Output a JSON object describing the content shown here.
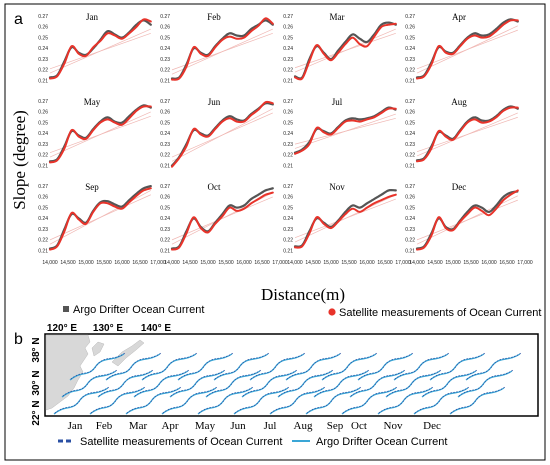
{
  "panels": {
    "a_label": "a",
    "b_label": "b"
  },
  "chart_data": [
    {
      "type": "line",
      "panel": "a",
      "subplot_titles": [
        "Jan",
        "Feb",
        "Mar",
        "Apr",
        "May",
        "Jun",
        "Jul",
        "Aug",
        "Sep",
        "Oct",
        "Nov",
        "Dec"
      ],
      "xlabel": "Distance(m)",
      "ylabel": "Slope (degree)",
      "xlim": [
        14000,
        17000
      ],
      "ylim": [
        0.205,
        0.272
      ],
      "x_ticks": [
        14000,
        14500,
        15000,
        15500,
        16000,
        16500,
        17000
      ],
      "x_tick_labels": [
        "14,000",
        "14,500",
        "15,000",
        "15,500",
        "16,000",
        "16,500",
        "17,000"
      ],
      "y_ticks": [
        0.21,
        0.22,
        0.23,
        0.24,
        0.25,
        0.26,
        0.27
      ],
      "y_tick_labels": [
        "0.21",
        "0.22",
        "0.23",
        "0.24",
        "0.25",
        "0.26",
        "0.27"
      ],
      "x": [
        14000,
        14200,
        14400,
        14600,
        14800,
        15000,
        15200,
        15400,
        15600,
        15800,
        16000,
        16200,
        16400,
        16600,
        16800
      ],
      "series": [
        {
          "name": "Argo Drifter Ocean Current",
          "color": "#555555",
          "values": [
            [
              0.213,
              0.215,
              0.228,
              0.241,
              0.236,
              0.234,
              0.24,
              0.248,
              0.256,
              0.253,
              0.25,
              0.255,
              0.262,
              0.266,
              0.262
            ],
            [
              0.212,
              0.213,
              0.225,
              0.24,
              0.236,
              0.234,
              0.242,
              0.249,
              0.254,
              0.252,
              0.252,
              0.258,
              0.262,
              0.266,
              0.262
            ],
            [
              0.214,
              0.213,
              0.23,
              0.242,
              0.236,
              0.23,
              0.238,
              0.246,
              0.253,
              0.249,
              0.246,
              0.253,
              0.262,
              0.264,
              0.262
            ],
            [
              0.213,
              0.215,
              0.227,
              0.241,
              0.237,
              0.236,
              0.243,
              0.25,
              0.254,
              0.252,
              0.253,
              0.258,
              0.264,
              0.267,
              0.265
            ],
            [
              0.214,
              0.216,
              0.228,
              0.242,
              0.238,
              0.236,
              0.244,
              0.251,
              0.255,
              0.251,
              0.25,
              0.256,
              0.262,
              0.266,
              0.264
            ],
            [
              0.21,
              0.218,
              0.23,
              0.243,
              0.24,
              0.238,
              0.245,
              0.252,
              0.256,
              0.253,
              0.252,
              0.258,
              0.263,
              0.268,
              0.267
            ],
            [
              0.222,
              0.225,
              0.232,
              0.244,
              0.242,
              0.24,
              0.246,
              0.252,
              0.254,
              0.253,
              0.254,
              0.256,
              0.26,
              0.264,
              0.262
            ],
            [
              0.215,
              0.217,
              0.228,
              0.241,
              0.238,
              0.235,
              0.243,
              0.251,
              0.255,
              0.252,
              0.252,
              0.256,
              0.262,
              0.265,
              0.263
            ],
            [
              0.212,
              0.215,
              0.23,
              0.244,
              0.24,
              0.236,
              0.247,
              0.255,
              0.256,
              0.253,
              0.251,
              0.257,
              0.263,
              0.268,
              0.27
            ],
            [
              0.212,
              0.214,
              0.228,
              0.24,
              0.232,
              0.228,
              0.236,
              0.244,
              0.252,
              0.25,
              0.252,
              0.258,
              0.262,
              0.266,
              0.268
            ],
            [
              0.214,
              0.215,
              0.228,
              0.24,
              0.236,
              0.232,
              0.238,
              0.246,
              0.252,
              0.25,
              0.254,
              0.258,
              0.262,
              0.266,
              0.266
            ],
            [
              0.212,
              0.214,
              0.226,
              0.24,
              0.232,
              0.23,
              0.238,
              0.246,
              0.252,
              0.25,
              0.246,
              0.252,
              0.26,
              0.264,
              0.265
            ]
          ]
        },
        {
          "name": "Satellite measurements of Ocean Current",
          "color": "#e8332a",
          "values": [
            [
              0.212,
              0.214,
              0.226,
              0.242,
              0.235,
              0.233,
              0.241,
              0.247,
              0.254,
              0.252,
              0.249,
              0.254,
              0.26,
              0.267,
              0.265
            ],
            [
              0.211,
              0.212,
              0.223,
              0.241,
              0.235,
              0.233,
              0.241,
              0.248,
              0.251,
              0.249,
              0.25,
              0.256,
              0.261,
              0.268,
              0.263
            ],
            [
              0.213,
              0.212,
              0.228,
              0.243,
              0.235,
              0.229,
              0.236,
              0.244,
              0.25,
              0.244,
              0.242,
              0.251,
              0.26,
              0.262,
              0.263
            ],
            [
              0.212,
              0.214,
              0.225,
              0.242,
              0.236,
              0.235,
              0.242,
              0.249,
              0.252,
              0.25,
              0.251,
              0.256,
              0.262,
              0.266,
              0.266
            ],
            [
              0.213,
              0.215,
              0.226,
              0.243,
              0.237,
              0.235,
              0.243,
              0.25,
              0.253,
              0.25,
              0.248,
              0.254,
              0.261,
              0.265,
              0.265
            ],
            [
              0.209,
              0.217,
              0.228,
              0.244,
              0.239,
              0.237,
              0.244,
              0.251,
              0.254,
              0.251,
              0.251,
              0.257,
              0.262,
              0.269,
              0.268
            ],
            [
              0.221,
              0.224,
              0.23,
              0.245,
              0.241,
              0.239,
              0.245,
              0.251,
              0.252,
              0.251,
              0.253,
              0.255,
              0.259,
              0.263,
              0.263
            ],
            [
              0.214,
              0.216,
              0.226,
              0.242,
              0.237,
              0.234,
              0.242,
              0.25,
              0.253,
              0.25,
              0.251,
              0.255,
              0.261,
              0.264,
              0.264
            ],
            [
              0.211,
              0.214,
              0.228,
              0.245,
              0.239,
              0.235,
              0.246,
              0.254,
              0.254,
              0.251,
              0.249,
              0.255,
              0.261,
              0.266,
              0.268
            ],
            [
              0.211,
              0.213,
              0.226,
              0.241,
              0.231,
              0.227,
              0.235,
              0.242,
              0.25,
              0.247,
              0.249,
              0.254,
              0.258,
              0.262,
              0.264
            ],
            [
              0.213,
              0.214,
              0.226,
              0.241,
              0.235,
              0.231,
              0.237,
              0.244,
              0.249,
              0.246,
              0.25,
              0.254,
              0.257,
              0.26,
              0.262
            ],
            [
              0.211,
              0.213,
              0.224,
              0.241,
              0.231,
              0.229,
              0.237,
              0.244,
              0.25,
              0.247,
              0.243,
              0.249,
              0.257,
              0.262,
              0.266
            ]
          ]
        }
      ],
      "legend": [
        {
          "label": "Argo Drifter Ocean Current",
          "color": "#555555",
          "marker": "square"
        },
        {
          "label": "Satellite measurements of Ocean Current",
          "color": "#e8332a",
          "marker": "circle"
        }
      ]
    },
    {
      "type": "line",
      "panel": "b",
      "x_ticks": [
        "120° E",
        "130° E",
        "140° E"
      ],
      "y_ticks": [
        "38° N",
        "30° N",
        "22° N"
      ],
      "categories": [
        "Jan",
        "Feb",
        "Mar",
        "Apr",
        "May",
        "Jun",
        "Jul",
        "Aug",
        "Sep",
        "Oct",
        "Nov",
        "Dec"
      ],
      "land_color": "#d8d8d8",
      "legend": [
        {
          "label": "Satellite measurements of Ocean Current",
          "color": "#2a4fa3",
          "style": "dashed"
        },
        {
          "label": "Argo Drifter Ocean Current",
          "color": "#3aa6d6",
          "style": "solid"
        }
      ]
    }
  ]
}
